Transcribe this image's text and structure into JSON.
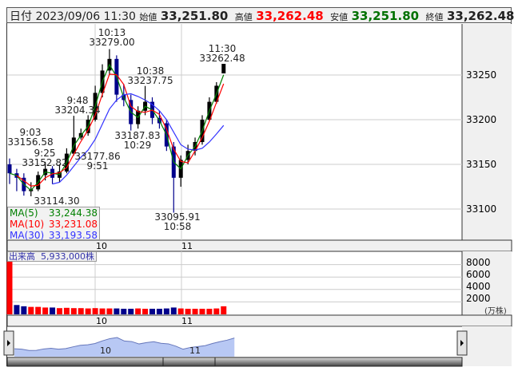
{
  "header": {
    "date_label": "日付",
    "datetime": "2023/09/06 11:30",
    "open_label": "始値",
    "open": "33,251.80",
    "high_label": "高値",
    "high": "33,262.48",
    "low_label": "安値",
    "low": "33,251.80",
    "close_label": "終値",
    "close": "33,262.48"
  },
  "colors": {
    "up": "#000000",
    "down": "#00008b",
    "ma5": "#008000",
    "ma10": "#ff0000",
    "ma30": "#3333ff",
    "high": "#ff0000",
    "low": "#008000",
    "vol_up": "#ff0000",
    "vol_down": "#00008b",
    "nav_fill": "#b8c8f4"
  },
  "legend": {
    "ma5_label": "MA(5)",
    "ma5_value": "33,244.38",
    "ma10_label": "MA(10)",
    "ma10_value": "33,231.08",
    "ma30_label": "MA(30)",
    "ma30_value": "33,193.58"
  },
  "annotations": {
    "a1_time": "10:13",
    "a1_price": "33279.00",
    "a2_time": "11:30",
    "a2_price": "33262.48",
    "a3_time": "10:38",
    "a3_price": "33237.75",
    "a4_time": "9:48",
    "a4_price": "33204.34",
    "a5_price": "33187.83",
    "a5_time": "10:29",
    "a6_time": "9:03",
    "a6_price": "33156.58",
    "a7_time": "9:25",
    "a7_price": "33152.82",
    "a8_price": "33177.86",
    "a8_time": "9:51",
    "a9_price": "33114.30",
    "a10_price": "33095.91",
    "a10_time": "10:58"
  },
  "volume": {
    "label": "出来高",
    "total": "5,933,000株",
    "unit": "(万株)"
  },
  "chart_data": [
    {
      "type": "candlestick",
      "x": [
        "9:00",
        "9:05",
        "9:10",
        "9:15",
        "9:20",
        "9:25",
        "9:30",
        "9:35",
        "9:40",
        "9:45",
        "9:50",
        "9:55",
        "10:00",
        "10:05",
        "10:10",
        "10:15",
        "10:20",
        "10:25",
        "10:30",
        "10:35",
        "10:40",
        "10:45",
        "10:50",
        "10:55",
        "11:00",
        "11:05",
        "11:10",
        "11:15",
        "11:20",
        "11:25",
        "11:30"
      ],
      "ohlc": [
        [
          33150,
          33156.58,
          33128,
          33140
        ],
        [
          33140,
          33145,
          33120,
          33135
        ],
        [
          33135,
          33140,
          33115,
          33120
        ],
        [
          33120,
          33130,
          33114.3,
          33122
        ],
        [
          33122,
          33142,
          33120,
          33138
        ],
        [
          33138,
          33152.82,
          33132,
          33145
        ],
        [
          33145,
          33148,
          33128,
          33135
        ],
        [
          33135,
          33150,
          33130,
          33142
        ],
        [
          33142,
          33168,
          33140,
          33162
        ],
        [
          33162,
          33204.34,
          33160,
          33180
        ],
        [
          33180,
          33190,
          33177.86,
          33185
        ],
        [
          33185,
          33205,
          33182,
          33200
        ],
        [
          33200,
          33238,
          33198,
          33230
        ],
        [
          33230,
          33262,
          33225,
          33255
        ],
        [
          33255,
          33279.0,
          33250,
          33268
        ],
        [
          33268,
          33272,
          33220,
          33228
        ],
        [
          33228,
          33240,
          33215,
          33222
        ],
        [
          33222,
          33228,
          33187.83,
          33195
        ],
        [
          33195,
          33215,
          33190,
          33210
        ],
        [
          33210,
          33237.75,
          33205,
          33220
        ],
        [
          33220,
          33225,
          33195,
          33202
        ],
        [
          33202,
          33210,
          33190,
          33196
        ],
        [
          33196,
          33200,
          33165,
          33170
        ],
        [
          33170,
          33175,
          33095.91,
          33135
        ],
        [
          33135,
          33160,
          33125,
          33155
        ],
        [
          33155,
          33172,
          33150,
          33165
        ],
        [
          33165,
          33180,
          33160,
          33175
        ],
        [
          33175,
          33205,
          33172,
          33200
        ],
        [
          33200,
          33225,
          33198,
          33220
        ],
        [
          33220,
          33242,
          33218,
          33238
        ],
        [
          33251.8,
          33262.48,
          33251.8,
          33262.48
        ]
      ],
      "ma30": [
        null,
        null,
        null,
        null,
        null,
        null,
        33128,
        33130,
        33138,
        33148,
        33158,
        33166,
        33178,
        33195,
        33212,
        33222,
        33228,
        33229,
        33226,
        33222,
        33217,
        33210,
        33200,
        33186,
        33172,
        33167,
        33166,
        33168,
        33175,
        33184,
        33193.58
      ],
      "y_ticks": [
        33100,
        33150,
        33200,
        33250
      ],
      "x_ticks": [
        "10",
        "11"
      ],
      "ylim": [
        33070,
        33300
      ]
    },
    {
      "type": "bar",
      "name": "出来高",
      "x": [
        "9:00",
        "9:05",
        "9:10",
        "9:15",
        "9:20",
        "9:25",
        "9:30",
        "9:35",
        "9:40",
        "9:45",
        "9:50",
        "9:55",
        "10:00",
        "10:05",
        "10:10",
        "10:15",
        "10:20",
        "10:25",
        "10:30",
        "10:35",
        "10:40",
        "10:45",
        "10:50",
        "10:55",
        "11:00",
        "11:05",
        "11:10",
        "11:15",
        "11:20",
        "11:25",
        "11:30"
      ],
      "values": [
        8500,
        1500,
        1300,
        1200,
        1200,
        1100,
        1100,
        1000,
        1050,
        1000,
        1000,
        950,
        1000,
        950,
        950,
        950,
        900,
        900,
        950,
        900,
        900,
        900,
        950,
        1100,
        950,
        900,
        900,
        900,
        900,
        950,
        1300
      ],
      "y_ticks": [
        2000,
        4000,
        6000,
        8000
      ],
      "x_ticks": [
        "10",
        "11"
      ]
    }
  ],
  "navigator": {
    "x_ticks": [
      "10",
      "11"
    ]
  }
}
